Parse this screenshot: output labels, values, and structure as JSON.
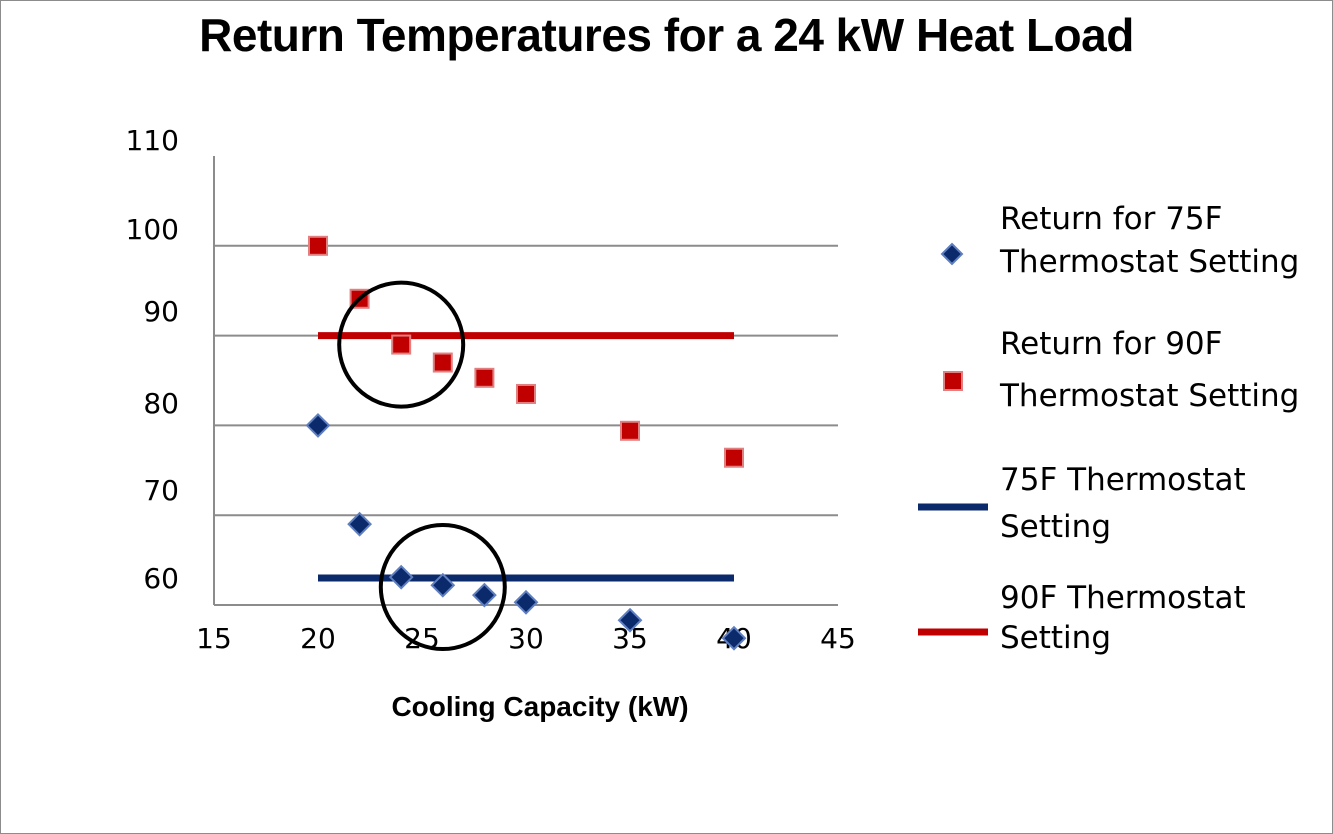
{
  "chart_data": {
    "type": "scatter",
    "title": "Return Temperatures for a 24 kW Heat Load",
    "xlabel": "Cooling Capacity  (kW)",
    "ylabel": "",
    "xlim": [
      15,
      45
    ],
    "ylim": [
      60,
      110
    ],
    "x_ticks": [
      15,
      20,
      25,
      30,
      35,
      40,
      45
    ],
    "y_tick_labels": [
      {
        "value": 110,
        "text": "110"
      },
      {
        "value": 100,
        "text": "100"
      },
      {
        "value": 90,
        "text": "90"
      },
      {
        "value": 80,
        "text": "80"
      },
      {
        "value": 70,
        "text": "70"
      },
      {
        "value": 60,
        "text": "60"
      }
    ],
    "gridlines_y": [
      60,
      70,
      80,
      90,
      100
    ],
    "grid": true,
    "legend_position": "right",
    "series": [
      {
        "name": "Return for 75F Thermostat Setting",
        "kind": "marker",
        "marker": "diamond",
        "color": "#0b2a6b",
        "x": [
          20,
          22,
          24,
          26,
          28,
          30,
          35,
          40
        ],
        "y": [
          80,
          69,
          63.1,
          62.2,
          61.1,
          60.3,
          58.3,
          56.3
        ]
      },
      {
        "name": "Return for 90F Thermostat Setting",
        "kind": "marker",
        "marker": "square",
        "color": "#c00000",
        "x": [
          20,
          22,
          24,
          26,
          28,
          30,
          35,
          40
        ],
        "y": [
          100,
          94.1,
          89,
          87,
          85.3,
          83.5,
          79.4,
          76.4
        ]
      },
      {
        "name": "75F Thermostat Setting",
        "kind": "line",
        "color": "#0b2a6b",
        "x": [
          20,
          40
        ],
        "y": [
          63,
          63
        ]
      },
      {
        "name": "90F Thermostat Setting",
        "kind": "line",
        "color": "#c00000",
        "x": [
          20,
          40
        ],
        "y": [
          90,
          90
        ]
      }
    ],
    "annotations": [
      {
        "shape": "circle",
        "cx": 24,
        "cy": 89
      },
      {
        "shape": "circle",
        "cx": 26,
        "cy": 62
      }
    ]
  }
}
